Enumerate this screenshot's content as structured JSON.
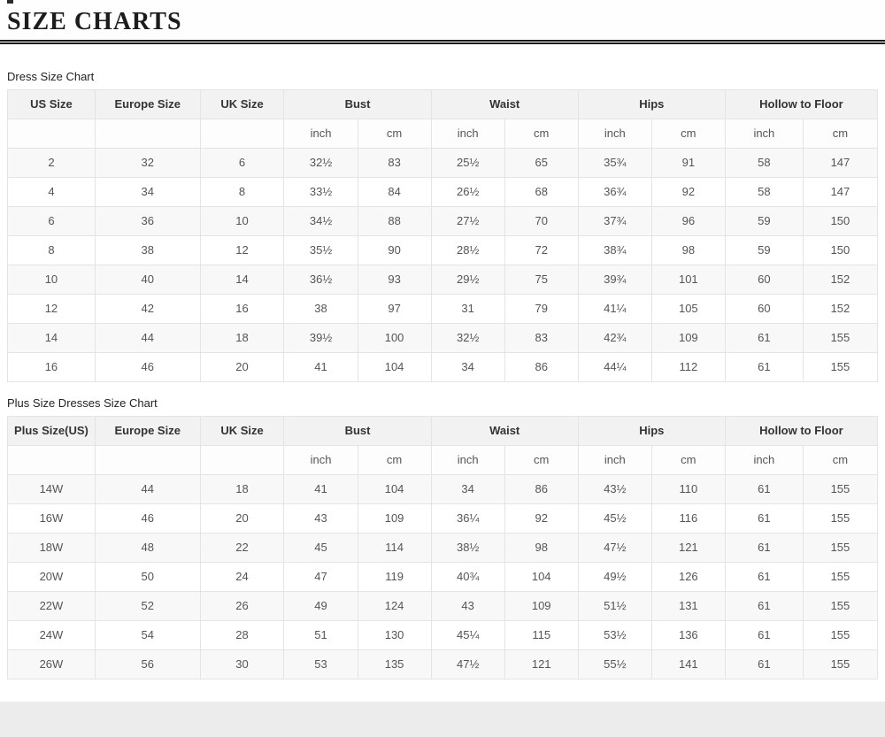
{
  "page": {
    "title": "SIZE CHARTS"
  },
  "chart_data": [
    {
      "type": "table",
      "title": "Dress Size Chart",
      "column_groups": [
        {
          "label": "US Size",
          "span": 1
        },
        {
          "label": "Europe Size",
          "span": 1
        },
        {
          "label": "UK Size",
          "span": 1
        },
        {
          "label": "Bust",
          "span": 2
        },
        {
          "label": "Waist",
          "span": 2
        },
        {
          "label": "Hips",
          "span": 2
        },
        {
          "label": "Hollow to Floor",
          "span": 2
        }
      ],
      "unit_row": [
        "",
        "",
        "",
        "inch",
        "cm",
        "inch",
        "cm",
        "inch",
        "cm",
        "inch",
        "cm"
      ],
      "columns": [
        "US Size",
        "Europe Size",
        "UK Size",
        "Bust (inch)",
        "Bust (cm)",
        "Waist (inch)",
        "Waist (cm)",
        "Hips (inch)",
        "Hips (cm)",
        "Hollow to Floor (inch)",
        "Hollow to Floor (cm)"
      ],
      "rows": [
        [
          "2",
          "32",
          "6",
          "32½",
          "83",
          "25½",
          "65",
          "35¾",
          "91",
          "58",
          "147"
        ],
        [
          "4",
          "34",
          "8",
          "33½",
          "84",
          "26½",
          "68",
          "36¾",
          "92",
          "58",
          "147"
        ],
        [
          "6",
          "36",
          "10",
          "34½",
          "88",
          "27½",
          "70",
          "37¾",
          "96",
          "59",
          "150"
        ],
        [
          "8",
          "38",
          "12",
          "35½",
          "90",
          "28½",
          "72",
          "38¾",
          "98",
          "59",
          "150"
        ],
        [
          "10",
          "40",
          "14",
          "36½",
          "93",
          "29½",
          "75",
          "39¾",
          "101",
          "60",
          "152"
        ],
        [
          "12",
          "42",
          "16",
          "38",
          "97",
          "31",
          "79",
          "41¼",
          "105",
          "60",
          "152"
        ],
        [
          "14",
          "44",
          "18",
          "39½",
          "100",
          "32½",
          "83",
          "42¾",
          "109",
          "61",
          "155"
        ],
        [
          "16",
          "46",
          "20",
          "41",
          "104",
          "34",
          "86",
          "44¼",
          "112",
          "61",
          "155"
        ]
      ],
      "layout": {
        "grid": true,
        "zebra_striping": true
      }
    },
    {
      "type": "table",
      "title": "Plus Size Dresses Size Chart",
      "column_groups": [
        {
          "label": "Plus Size(US)",
          "span": 1
        },
        {
          "label": "Europe Size",
          "span": 1
        },
        {
          "label": "UK Size",
          "span": 1
        },
        {
          "label": "Bust",
          "span": 2
        },
        {
          "label": "Waist",
          "span": 2
        },
        {
          "label": "Hips",
          "span": 2
        },
        {
          "label": "Hollow to Floor",
          "span": 2
        }
      ],
      "unit_row": [
        "",
        "",
        "",
        "inch",
        "cm",
        "inch",
        "cm",
        "inch",
        "cm",
        "inch",
        "cm"
      ],
      "columns": [
        "Plus Size(US)",
        "Europe Size",
        "UK Size",
        "Bust (inch)",
        "Bust (cm)",
        "Waist (inch)",
        "Waist (cm)",
        "Hips (inch)",
        "Hips (cm)",
        "Hollow to Floor (inch)",
        "Hollow to Floor (cm)"
      ],
      "rows": [
        [
          "14W",
          "44",
          "18",
          "41",
          "104",
          "34",
          "86",
          "43½",
          "110",
          "61",
          "155"
        ],
        [
          "16W",
          "46",
          "20",
          "43",
          "109",
          "36¼",
          "92",
          "45½",
          "116",
          "61",
          "155"
        ],
        [
          "18W",
          "48",
          "22",
          "45",
          "114",
          "38½",
          "98",
          "47½",
          "121",
          "61",
          "155"
        ],
        [
          "20W",
          "50",
          "24",
          "47",
          "119",
          "40¾",
          "104",
          "49½",
          "126",
          "61",
          "155"
        ],
        [
          "22W",
          "52",
          "26",
          "49",
          "124",
          "43",
          "109",
          "51½",
          "131",
          "61",
          "155"
        ],
        [
          "24W",
          "54",
          "28",
          "51",
          "130",
          "45¼",
          "115",
          "53½",
          "136",
          "61",
          "155"
        ],
        [
          "26W",
          "56",
          "30",
          "53",
          "135",
          "47½",
          "121",
          "55½",
          "141",
          "61",
          "155"
        ]
      ],
      "layout": {
        "grid": true,
        "zebra_striping": true
      }
    }
  ],
  "colors": {
    "header_row_bg": "#f2f2f2",
    "zebra_row_bg": "#f8f8f8",
    "grid_border": "#e4e4e4",
    "title_rule": "#161616",
    "footer_strip_bg": "#ececec",
    "text_primary": "#333333",
    "text_data": "#555555"
  }
}
